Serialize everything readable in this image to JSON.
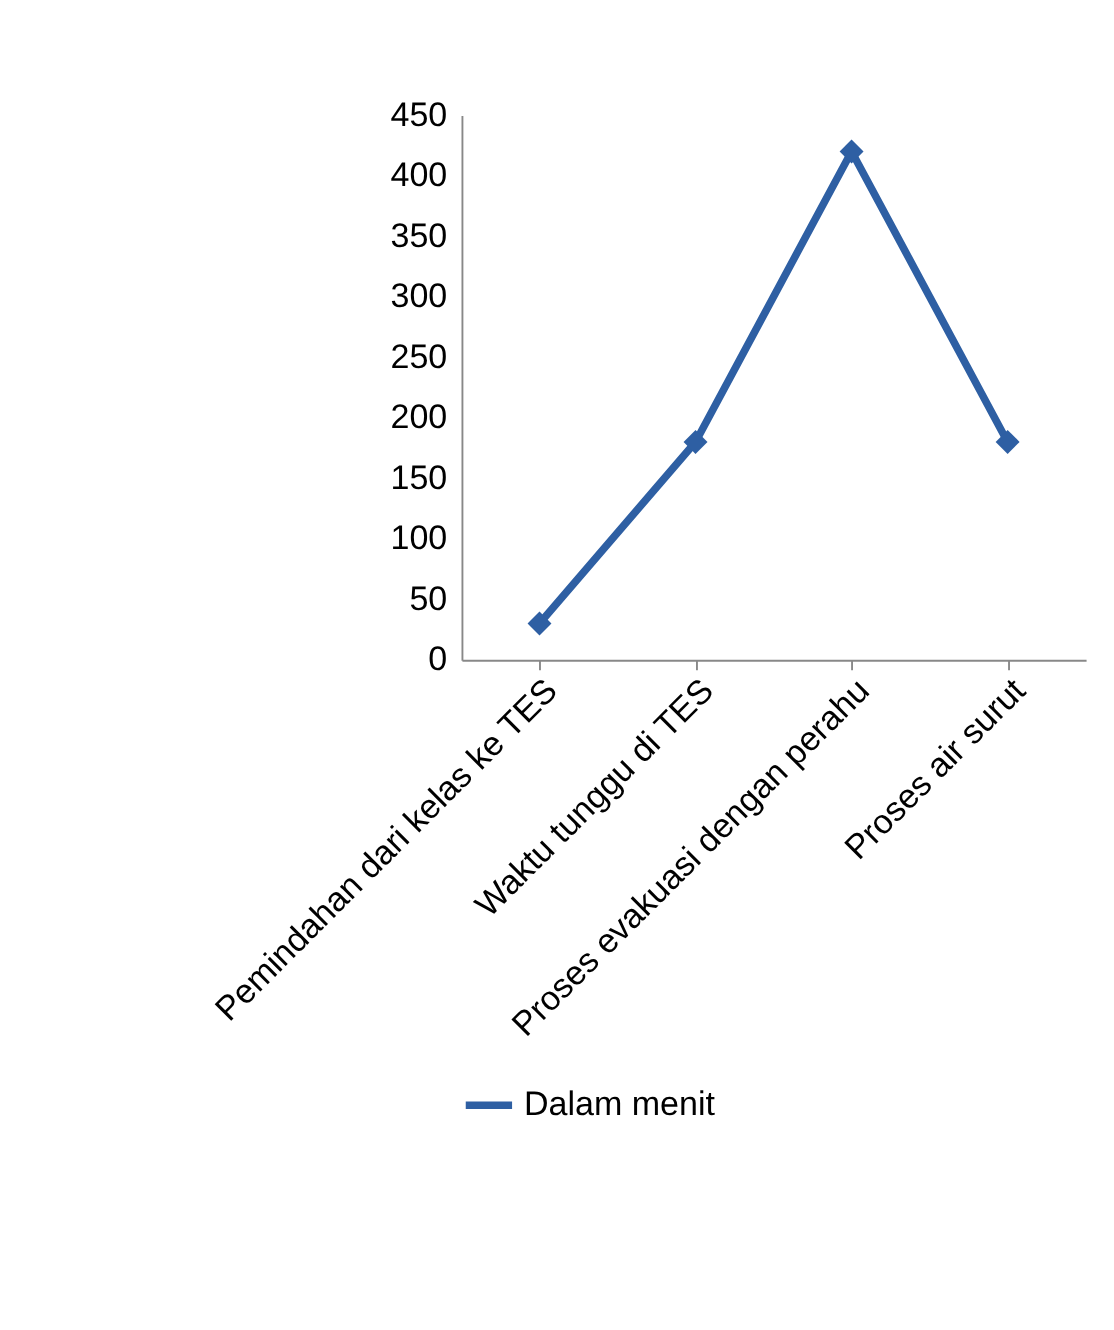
{
  "chart_data": {
    "type": "line",
    "categories": [
      "Pemindahan dari kelas ke TES",
      "Waktu tunggu di TES",
      "Proses evakuasi dengan perahu",
      "Proses air surut"
    ],
    "series": [
      {
        "name": "Dalam menit",
        "color": "#2e5fa3",
        "values": [
          30,
          180,
          420,
          180
        ]
      }
    ],
    "ylim": [
      0,
      450
    ],
    "yticks": [
      0,
      50,
      100,
      150,
      200,
      250,
      300,
      350,
      400,
      450
    ],
    "grid": false,
    "legend": "bottom",
    "marker": "diamond",
    "line_style": "solid"
  }
}
